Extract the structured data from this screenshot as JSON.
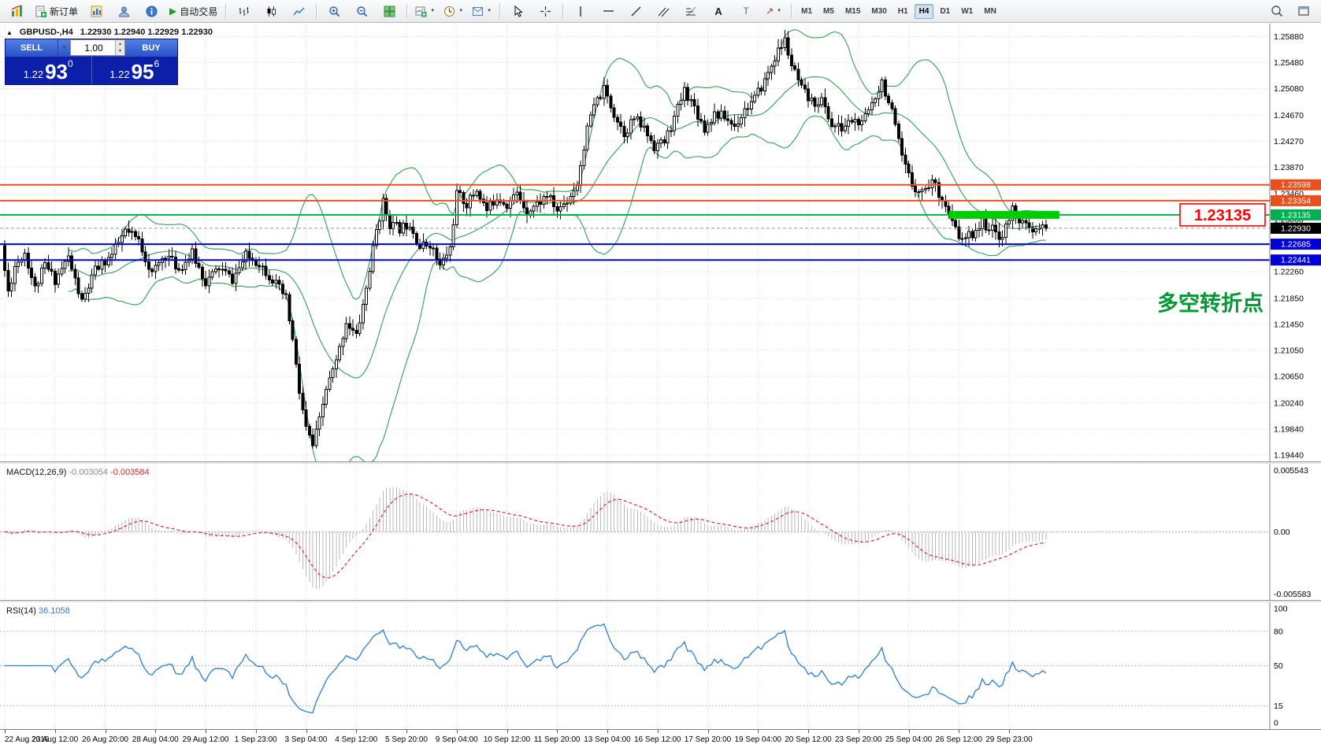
{
  "colors": {
    "bull": "#ffffff",
    "bear": "#000000",
    "wick": "#000000",
    "bands": "#2fa150",
    "grid": "#dadada",
    "level_orange": "#e8501e",
    "level_green": "#00b050",
    "level_blue": "#0000d8",
    "bid_tag": "#000000",
    "macd_hist": "#b9b9b9",
    "macd_signal": "#d42a2a",
    "rsi_line": "#2a7cd4",
    "annotation_green": "#009933",
    "price_box_red": "#ff0000",
    "segment_green": "#00cc00"
  },
  "toolbar": {
    "new_order_label": "新订单",
    "autotrading_label": "自动交易",
    "timeframes": [
      "M1",
      "M5",
      "M15",
      "M30",
      "H1",
      "H4",
      "D1",
      "W1",
      "MN"
    ],
    "active_timeframe": "H4"
  },
  "icons": {
    "collapse": "▲",
    "dropdown": "▼",
    "play": "▶",
    "spinner_up": "▲",
    "spinner_down": "▼",
    "text_tool": "A",
    "label_tool": "T",
    "arrow_tool": "↗"
  },
  "quick_trade": {
    "sell_label": "SELL",
    "buy_label": "BUY",
    "volume": "1.00",
    "sell_price": {
      "small": "1.22",
      "big": "93",
      "sup": "0"
    },
    "buy_price": {
      "small": "1.22",
      "big": "95",
      "sup": "6"
    }
  },
  "chart": {
    "symbol_title": "GBPUSD-,H4",
    "ohlc_text": "1.22930 1.22940 1.22929 1.22930",
    "y_labels": [
      "1.25880",
      "1.25480",
      "1.25080",
      "1.24670",
      "1.24270",
      "1.23870",
      "1.23460",
      "1.23060",
      "1.22660",
      "1.22260",
      "1.21850",
      "1.21450",
      "1.21050",
      "1.20650",
      "1.20240",
      "1.19840",
      "1.19440"
    ],
    "levels": [
      {
        "label": "1.23598",
        "price": 1.23598,
        "color": "#e8501e",
        "kind": "line"
      },
      {
        "label": "1.23354",
        "price": 1.23354,
        "color": "#e8501e",
        "kind": "line"
      },
      {
        "label": "1.23135",
        "price": 1.23135,
        "color": "#00b050",
        "kind": "line"
      },
      {
        "label": "1.22930",
        "price": 1.2293,
        "color": "#000000",
        "kind": "bid"
      },
      {
        "label": "1.22685",
        "price": 1.22685,
        "color": "#0000d8",
        "kind": "line"
      },
      {
        "label": "1.22441",
        "price": 1.22441,
        "color": "#0000d8",
        "kind": "line"
      }
    ],
    "objects": {
      "green_segment": {
        "price": 1.23135,
        "bar_start": 282,
        "bar_end": 315
      },
      "price_box": {
        "label": "1.23135",
        "price": 1.23135
      },
      "annotation": {
        "text": "多空转折点",
        "price": 1.2177
      }
    }
  },
  "macd_panel": {
    "title": "MACD(12,26,9)",
    "value": "-0.003054",
    "signal": "-0.003584",
    "axis_top": "0.005543",
    "axis_zero": "0.00",
    "axis_bottom": "-0.005583"
  },
  "rsi_panel": {
    "title": "RSI(14)",
    "value": "36.1058",
    "axis": [
      100,
      80,
      50,
      15,
      0
    ],
    "levels": [
      80,
      50,
      15
    ]
  },
  "chart_data": {
    "type": "candlestick",
    "symbol": "GBPUSD-",
    "timeframe": "H4",
    "bars": 312,
    "last_close": 1.2293,
    "y_range": [
      1.2608,
      1.1934
    ],
    "ohlc_current": {
      "open": 1.2293,
      "high": 1.2294,
      "low": 1.22929,
      "close": 1.2293
    },
    "indicators": {
      "bollinger": {
        "period": 20,
        "deviation": 2
      },
      "macd": {
        "fast": 12,
        "slow": 26,
        "signal": 9,
        "current_main": -0.003054,
        "current_signal": -0.003584
      },
      "rsi": {
        "period": 14,
        "current": 36.1058
      }
    },
    "price_path": [
      [
        0,
        1.226
      ],
      [
        2,
        1.2195
      ],
      [
        4,
        1.2235
      ],
      [
        7,
        1.2256
      ],
      [
        10,
        1.22
      ],
      [
        13,
        1.2236
      ],
      [
        16,
        1.2214
      ],
      [
        20,
        1.2248
      ],
      [
        24,
        1.2178
      ],
      [
        28,
        1.2228
      ],
      [
        33,
        1.2252
      ],
      [
        37,
        1.2288
      ],
      [
        41,
        1.2274
      ],
      [
        45,
        1.2222
      ],
      [
        49,
        1.2254
      ],
      [
        53,
        1.223
      ],
      [
        57,
        1.2254
      ],
      [
        61,
        1.221
      ],
      [
        65,
        1.2232
      ],
      [
        69,
        1.2214
      ],
      [
        73,
        1.225
      ],
      [
        77,
        1.224
      ],
      [
        81,
        1.2214
      ],
      [
        85,
        1.2184
      ],
      [
        87,
        1.212
      ],
      [
        89,
        1.204
      ],
      [
        91,
        1.1984
      ],
      [
        93,
        1.1958
      ],
      [
        95,
        1.1996
      ],
      [
        97,
        1.2046
      ],
      [
        100,
        1.2086
      ],
      [
        103,
        1.215
      ],
      [
        106,
        1.2126
      ],
      [
        109,
        1.22
      ],
      [
        112,
        1.229
      ],
      [
        114,
        1.2332
      ],
      [
        116,
        1.23
      ],
      [
        119,
        1.2292
      ],
      [
        122,
        1.2302
      ],
      [
        125,
        1.2264
      ],
      [
        128,
        1.227
      ],
      [
        131,
        1.2234
      ],
      [
        134,
        1.2262
      ],
      [
        136,
        1.2346
      ],
      [
        139,
        1.233
      ],
      [
        142,
        1.2352
      ],
      [
        145,
        1.232
      ],
      [
        148,
        1.2342
      ],
      [
        151,
        1.233
      ],
      [
        154,
        1.2346
      ],
      [
        157,
        1.232
      ],
      [
        160,
        1.233
      ],
      [
        163,
        1.2344
      ],
      [
        166,
        1.232
      ],
      [
        169,
        1.2336
      ],
      [
        172,
        1.2362
      ],
      [
        174,
        1.242
      ],
      [
        176,
        1.2466
      ],
      [
        178,
        1.249
      ],
      [
        180,
        1.2506
      ],
      [
        183,
        1.247
      ],
      [
        186,
        1.244
      ],
      [
        189,
        1.2462
      ],
      [
        192,
        1.2446
      ],
      [
        195,
        1.242
      ],
      [
        198,
        1.2426
      ],
      [
        201,
        1.2462
      ],
      [
        204,
        1.2506
      ],
      [
        207,
        1.248
      ],
      [
        210,
        1.2446
      ],
      [
        213,
        1.247
      ],
      [
        216,
        1.2464
      ],
      [
        219,
        1.245
      ],
      [
        222,
        1.2476
      ],
      [
        225,
        1.2492
      ],
      [
        228,
        1.252
      ],
      [
        231,
        1.2556
      ],
      [
        234,
        1.2582
      ],
      [
        236,
        1.2544
      ],
      [
        239,
        1.2506
      ],
      [
        242,
        1.2486
      ],
      [
        245,
        1.249
      ],
      [
        248,
        1.2452
      ],
      [
        251,
        1.2446
      ],
      [
        254,
        1.246
      ],
      [
        257,
        1.2452
      ],
      [
        260,
        1.2486
      ],
      [
        263,
        1.252
      ],
      [
        266,
        1.247
      ],
      [
        269,
        1.24
      ],
      [
        272,
        1.236
      ],
      [
        275,
        1.235
      ],
      [
        278,
        1.2366
      ],
      [
        281,
        1.234
      ],
      [
        284,
        1.23
      ],
      [
        287,
        1.2272
      ],
      [
        290,
        1.2286
      ],
      [
        293,
        1.2302
      ],
      [
        296,
        1.229
      ],
      [
        299,
        1.228
      ],
      [
        302,
        1.2322
      ],
      [
        305,
        1.23
      ],
      [
        308,
        1.2286
      ],
      [
        311,
        1.2293
      ]
    ],
    "time_labels": [
      {
        "bar": 0,
        "label": "22 Aug 2019"
      },
      {
        "bar": 15,
        "label": "23 Aug 12:00"
      },
      {
        "bar": 30,
        "label": "26 Aug 20:00"
      },
      {
        "bar": 45,
        "label": "28 Aug 04:00"
      },
      {
        "bar": 60,
        "label": "29 Aug 12:00"
      },
      {
        "bar": 75,
        "label": "1 Sep 23:00"
      },
      {
        "bar": 90,
        "label": "3 Sep 04:00"
      },
      {
        "bar": 105,
        "label": "4 Sep 12:00"
      },
      {
        "bar": 120,
        "label": "5 Sep 20:00"
      },
      {
        "bar": 135,
        "label": "9 Sep 04:00"
      },
      {
        "bar": 150,
        "label": "10 Sep 12:00"
      },
      {
        "bar": 165,
        "label": "11 Sep 20:00"
      },
      {
        "bar": 180,
        "label": "13 Sep 04:00"
      },
      {
        "bar": 195,
        "label": "16 Sep 12:00"
      },
      {
        "bar": 210,
        "label": "17 Sep 20:00"
      },
      {
        "bar": 225,
        "label": "19 Sep 04:00"
      },
      {
        "bar": 240,
        "label": "20 Sep 12:00"
      },
      {
        "bar": 255,
        "label": "23 Sep 20:00"
      },
      {
        "bar": 270,
        "label": "25 Sep 04:00"
      },
      {
        "bar": 285,
        "label": "26 Sep 12:00"
      },
      {
        "bar": 300,
        "label": "29 Sep 23:00"
      }
    ]
  }
}
